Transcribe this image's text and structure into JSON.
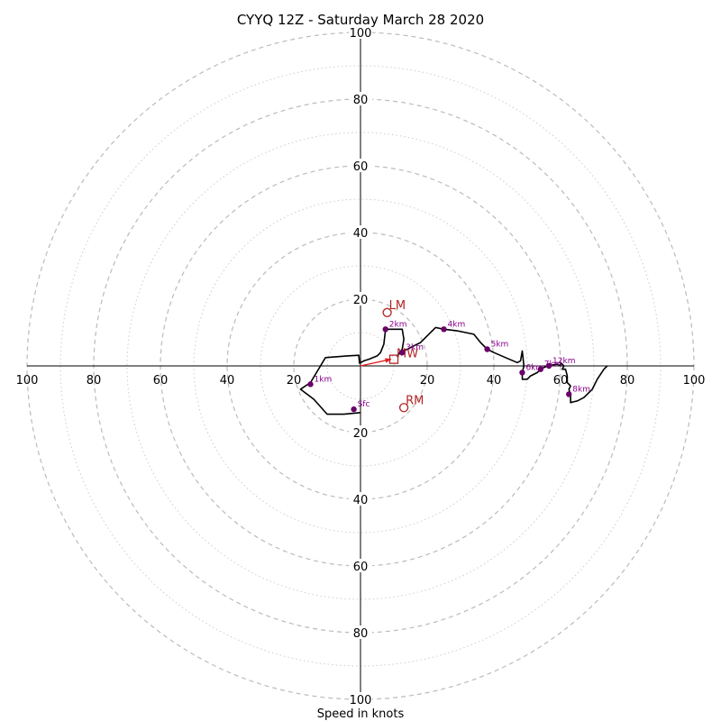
{
  "chart_data": {
    "type": "hodograph",
    "title": "CYYQ 12Z - Saturday March 28 2020",
    "xlabel": "Speed in knots",
    "ring_step": 10,
    "label_step": 20,
    "max_speed": 100,
    "tick_labels": [
      "20",
      "40",
      "60",
      "80",
      "100"
    ],
    "trace": [
      [
        0,
        -14
      ],
      [
        -5,
        -14.5
      ],
      [
        -10,
        -14.5
      ],
      [
        -14,
        -10
      ],
      [
        -18,
        -7
      ],
      [
        -15,
        -5
      ],
      [
        -12,
        0
      ],
      [
        -10.5,
        2.5
      ],
      [
        -4,
        3
      ],
      [
        -0.5,
        3.2
      ],
      [
        -0.3,
        0.8
      ],
      [
        1,
        1.5
      ],
      [
        2.5,
        2
      ],
      [
        5,
        3
      ],
      [
        6,
        4
      ],
      [
        7,
        6.5
      ],
      [
        7.5,
        11
      ],
      [
        12.5,
        11
      ],
      [
        13,
        8
      ],
      [
        12.5,
        5
      ],
      [
        11,
        3
      ],
      [
        12,
        4
      ],
      [
        15,
        5.5
      ],
      [
        18,
        7
      ],
      [
        20,
        9
      ],
      [
        22.5,
        11.5
      ],
      [
        25,
        11
      ],
      [
        29,
        10.5
      ],
      [
        34,
        9.5
      ],
      [
        36,
        7
      ],
      [
        38,
        5
      ],
      [
        40,
        4
      ],
      [
        43.5,
        2.5
      ],
      [
        47,
        1
      ],
      [
        48,
        1.5
      ],
      [
        48.5,
        4.5
      ],
      [
        49,
        0
      ],
      [
        48.5,
        -2
      ],
      [
        48.5,
        -4
      ],
      [
        50,
        -4
      ],
      [
        51,
        -3
      ],
      [
        53,
        -2
      ],
      [
        54,
        -1
      ],
      [
        56,
        0
      ],
      [
        59,
        0.5
      ],
      [
        60,
        0
      ],
      [
        60,
        1
      ],
      [
        61,
        0
      ],
      [
        60.5,
        -1
      ],
      [
        61.5,
        -1
      ],
      [
        62,
        -3
      ],
      [
        62,
        -5
      ],
      [
        63,
        -6
      ],
      [
        62.5,
        -7
      ],
      [
        63,
        -9
      ],
      [
        63,
        -11
      ],
      [
        65,
        -10.5
      ],
      [
        67,
        -9.5
      ],
      [
        69.5,
        -7
      ],
      [
        71,
        -4
      ],
      [
        73,
        -1
      ],
      [
        74,
        0
      ]
    ],
    "points": [
      {
        "label": "Sfc",
        "x": -2,
        "y": -13
      },
      {
        "label": "1km",
        "x": -15,
        "y": -5.5
      },
      {
        "label": "2km",
        "x": 7.5,
        "y": 11
      },
      {
        "label": "3km",
        "x": 12.5,
        "y": 4
      },
      {
        "label": "4km",
        "x": 25,
        "y": 11
      },
      {
        "label": "5km",
        "x": 38,
        "y": 5
      },
      {
        "label": "6km",
        "x": 48.5,
        "y": -2
      },
      {
        "label": "7km",
        "x": 54,
        "y": -1
      },
      {
        "label": "8km",
        "x": 62.5,
        "y": -8.5
      },
      {
        "label": "12km",
        "x": 56.5,
        "y": 0
      }
    ],
    "markers": [
      {
        "label": "LM",
        "x": 8,
        "y": 16
      },
      {
        "label": "RM",
        "x": 13,
        "y": -12.5
      },
      {
        "label": "MW",
        "x": 10,
        "y": 2
      }
    ],
    "grid": true
  },
  "colors": {
    "trace": "#000000",
    "points": "#6a006a",
    "point_label": "#8b008b",
    "marker": "#b22222",
    "arrow": "#e0201e",
    "grid_major": "#bbbbbb",
    "grid_minor": "#cccccc",
    "axis": "#000000"
  }
}
